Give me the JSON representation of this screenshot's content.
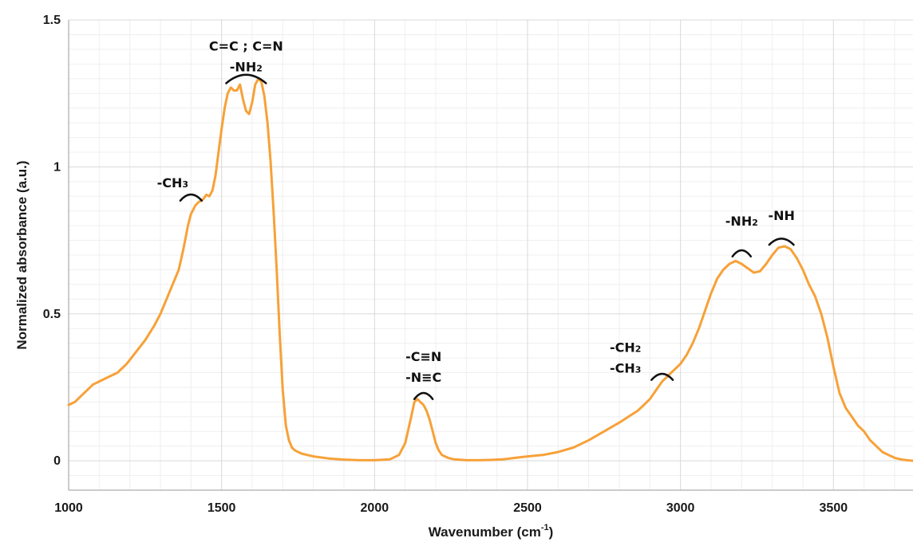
{
  "chart_data": {
    "type": "line",
    "title": "",
    "xlabel": "Wavenumber (cm",
    "xlabel_sup": "-1",
    "xlabel_close": ")",
    "ylabel": "Normalized absorbance (a.u.)",
    "xlim": [
      1000,
      3760
    ],
    "ylim": [
      -0.1,
      1.5
    ],
    "xticks": [
      1000,
      1500,
      2000,
      2500,
      3000,
      3500
    ],
    "xtick_labels": [
      "1000",
      "1500",
      "2000",
      "2500",
      "3000",
      "3500"
    ],
    "yticks": [
      0,
      0.5,
      1,
      1.5
    ],
    "ytick_labels": [
      "0",
      "0.5",
      "1",
      "1.5"
    ],
    "grid": true,
    "legend": "none",
    "series": [
      {
        "color": "#f7a138",
        "x": [
          1000,
          1020,
          1050,
          1080,
          1100,
          1130,
          1160,
          1190,
          1220,
          1250,
          1280,
          1300,
          1320,
          1340,
          1360,
          1375,
          1390,
          1400,
          1415,
          1425,
          1440,
          1450,
          1460,
          1470,
          1480,
          1490,
          1500,
          1510,
          1520,
          1530,
          1540,
          1550,
          1560,
          1570,
          1580,
          1590,
          1600,
          1610,
          1620,
          1630,
          1640,
          1650,
          1660,
          1670,
          1680,
          1690,
          1700,
          1710,
          1720,
          1730,
          1740,
          1760,
          1780,
          1800,
          1850,
          1900,
          1950,
          2000,
          2050,
          2080,
          2100,
          2120,
          2130,
          2140,
          2150,
          2160,
          2170,
          2180,
          2190,
          2200,
          2210,
          2220,
          2240,
          2260,
          2300,
          2340,
          2380,
          2420,
          2460,
          2500,
          2550,
          2600,
          2650,
          2700,
          2750,
          2800,
          2830,
          2860,
          2880,
          2900,
          2920,
          2940,
          2960,
          2980,
          3000,
          3020,
          3040,
          3060,
          3080,
          3100,
          3120,
          3140,
          3160,
          3180,
          3200,
          3220,
          3240,
          3260,
          3280,
          3300,
          3320,
          3340,
          3360,
          3380,
          3400,
          3420,
          3440,
          3460,
          3480,
          3500,
          3520,
          3540,
          3560,
          3580,
          3600,
          3620,
          3640,
          3660,
          3680,
          3700,
          3720,
          3740,
          3760
        ],
        "y": [
          0.19,
          0.2,
          0.23,
          0.26,
          0.27,
          0.285,
          0.3,
          0.33,
          0.37,
          0.41,
          0.46,
          0.5,
          0.55,
          0.6,
          0.65,
          0.72,
          0.8,
          0.84,
          0.87,
          0.88,
          0.89,
          0.905,
          0.9,
          0.92,
          0.97,
          1.05,
          1.13,
          1.2,
          1.25,
          1.27,
          1.26,
          1.26,
          1.28,
          1.23,
          1.19,
          1.18,
          1.22,
          1.28,
          1.3,
          1.29,
          1.24,
          1.15,
          1.02,
          0.85,
          0.65,
          0.43,
          0.24,
          0.12,
          0.07,
          0.045,
          0.035,
          0.025,
          0.02,
          0.015,
          0.008,
          0.004,
          0.002,
          0.002,
          0.005,
          0.02,
          0.06,
          0.15,
          0.2,
          0.21,
          0.2,
          0.19,
          0.17,
          0.14,
          0.1,
          0.06,
          0.035,
          0.02,
          0.01,
          0.005,
          0.002,
          0.002,
          0.003,
          0.005,
          0.01,
          0.015,
          0.02,
          0.03,
          0.045,
          0.07,
          0.1,
          0.13,
          0.15,
          0.17,
          0.19,
          0.21,
          0.24,
          0.27,
          0.29,
          0.31,
          0.33,
          0.36,
          0.4,
          0.45,
          0.51,
          0.57,
          0.62,
          0.65,
          0.67,
          0.68,
          0.67,
          0.655,
          0.64,
          0.645,
          0.67,
          0.7,
          0.725,
          0.73,
          0.72,
          0.69,
          0.65,
          0.6,
          0.56,
          0.5,
          0.42,
          0.32,
          0.23,
          0.18,
          0.15,
          0.12,
          0.1,
          0.07,
          0.05,
          0.03,
          0.02,
          0.01,
          0.005,
          0.002,
          0.0
        ]
      }
    ],
    "annotations": [
      {
        "lines": [
          {
            "main": "C=C ; C=N"
          },
          {
            "main": "-NH",
            "sub": "2"
          }
        ],
        "x": 1580,
        "y": 1.395,
        "arc_x": 1580,
        "arc_y": 1.305,
        "arc_w": 130
      },
      {
        "lines": [
          {
            "main": "-CH",
            "sub": "3"
          }
        ],
        "x": 1340,
        "y": 0.93,
        "arc_x": 1400,
        "arc_y": 0.9,
        "arc_w": 70
      },
      {
        "lines": [
          {
            "main": "-C≡N"
          },
          {
            "main": "-N≡C"
          }
        ],
        "x": 2160,
        "y": 0.34,
        "arc_x": 2160,
        "arc_y": 0.225,
        "arc_w": 60
      },
      {
        "lines": [
          {
            "main": "-CH",
            "sub": "2"
          },
          {
            "main": "-CH",
            "sub": "3"
          }
        ],
        "x": 2820,
        "y": 0.37,
        "arc_x": 2940,
        "arc_y": 0.29,
        "arc_w": 70
      },
      {
        "lines": [
          {
            "main": "-NH",
            "sub": "2"
          }
        ],
        "x": 3200,
        "y": 0.8,
        "arc_x": 3200,
        "arc_y": 0.71,
        "arc_w": 60
      },
      {
        "lines": [
          {
            "main": "-NH"
          }
        ],
        "x": 3330,
        "y": 0.82,
        "arc_x": 3330,
        "arc_y": 0.75,
        "arc_w": 80
      }
    ]
  }
}
